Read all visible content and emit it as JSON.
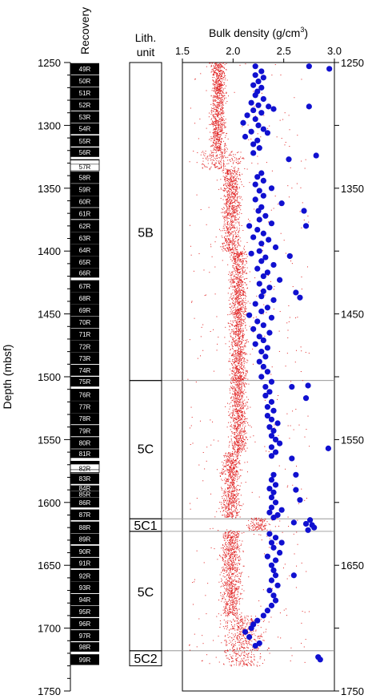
{
  "chart_data": {
    "type": "scatter",
    "ylabel": "Depth (mbsf)",
    "xlabel": "Bulk density (g/cm3)",
    "xlabel_parts": [
      "Bulk density (g/cm",
      "3",
      ")"
    ],
    "ylim": [
      1250,
      1750
    ],
    "xlim": [
      1.5,
      3.0
    ],
    "y_ticks": [
      1250,
      1300,
      1350,
      1400,
      1450,
      1500,
      1550,
      1600,
      1650,
      1700,
      1750
    ],
    "y_ticks_right": [
      1250,
      1350,
      1450,
      1550,
      1650,
      1750
    ],
    "x_ticks": [
      "1.5",
      "2.0",
      "2.5",
      "3.0"
    ],
    "x_tick_values": [
      1.5,
      2.0,
      2.5,
      3.0
    ],
    "recovery_title": "Recovery",
    "cores": [
      {
        "label": "49R",
        "top": 1250.5,
        "bottom": 1260.0,
        "recovered": 9.0,
        "white": false
      },
      {
        "label": "50R",
        "top": 1260.0,
        "bottom": 1269.6,
        "recovered": 9.2,
        "white": false
      },
      {
        "label": "51R",
        "top": 1269.6,
        "bottom": 1279.2,
        "recovered": 9.3,
        "white": false
      },
      {
        "label": "52R",
        "top": 1279.2,
        "bottom": 1288.8,
        "recovered": 9.0,
        "white": false
      },
      {
        "label": "53R",
        "top": 1288.8,
        "bottom": 1298.4,
        "recovered": 9.2,
        "white": false
      },
      {
        "label": "54R",
        "top": 1298.4,
        "bottom": 1308.0,
        "recovered": 8.6,
        "white": false
      },
      {
        "label": "55R",
        "top": 1308.0,
        "bottom": 1317.6,
        "recovered": 8.8,
        "white": false
      },
      {
        "label": "56R",
        "top": 1317.6,
        "bottom": 1327.2,
        "recovered": 7.5,
        "white": false
      },
      {
        "label": "57R",
        "top": 1327.2,
        "bottom": 1336.8,
        "recovered": 0.6,
        "white": true
      },
      {
        "label": "58R",
        "top": 1336.8,
        "bottom": 1346.4,
        "recovered": 9.3,
        "white": false
      },
      {
        "label": "59R",
        "top": 1346.4,
        "bottom": 1356.0,
        "recovered": 9.5,
        "white": false
      },
      {
        "label": "60R",
        "top": 1356.0,
        "bottom": 1365.6,
        "recovered": 9.2,
        "white": false
      },
      {
        "label": "61R",
        "top": 1365.6,
        "bottom": 1375.2,
        "recovered": 9.0,
        "white": false
      },
      {
        "label": "62R",
        "top": 1375.2,
        "bottom": 1384.8,
        "recovered": 9.5,
        "white": false
      },
      {
        "label": "63R",
        "top": 1384.8,
        "bottom": 1394.4,
        "recovered": 9.5,
        "white": false
      },
      {
        "label": "64R",
        "top": 1394.4,
        "bottom": 1404.0,
        "recovered": 9.5,
        "white": false
      },
      {
        "label": "65R",
        "top": 1404.0,
        "bottom": 1413.6,
        "recovered": 9.5,
        "white": false
      },
      {
        "label": "66R",
        "top": 1413.6,
        "bottom": 1423.2,
        "recovered": 7.5,
        "white": false
      },
      {
        "label": "67R",
        "top": 1423.2,
        "bottom": 1432.8,
        "recovered": 9.5,
        "white": false
      },
      {
        "label": "68R",
        "top": 1432.8,
        "bottom": 1442.4,
        "recovered": 9.5,
        "white": false
      },
      {
        "label": "69R",
        "top": 1442.4,
        "bottom": 1452.0,
        "recovered": 9.3,
        "white": false
      },
      {
        "label": "70R",
        "top": 1452.0,
        "bottom": 1461.6,
        "recovered": 9.2,
        "white": false
      },
      {
        "label": "71R",
        "top": 1461.6,
        "bottom": 1471.2,
        "recovered": 9.5,
        "white": false
      },
      {
        "label": "72R",
        "top": 1471.2,
        "bottom": 1480.8,
        "recovered": 9.5,
        "white": false
      },
      {
        "label": "73R",
        "top": 1480.8,
        "bottom": 1490.4,
        "recovered": 9.0,
        "white": false
      },
      {
        "label": "74R",
        "top": 1490.4,
        "bottom": 1500.0,
        "recovered": 8.8,
        "white": false
      },
      {
        "label": "75R",
        "top": 1500.0,
        "bottom": 1509.6,
        "recovered": 7.8,
        "white": false
      },
      {
        "label": "76R",
        "top": 1509.6,
        "bottom": 1519.2,
        "recovered": 9.5,
        "white": false
      },
      {
        "label": "77R",
        "top": 1519.2,
        "bottom": 1528.8,
        "recovered": 9.5,
        "white": false
      },
      {
        "label": "78R",
        "top": 1528.8,
        "bottom": 1538.4,
        "recovered": 9.0,
        "white": false
      },
      {
        "label": "79R",
        "top": 1538.4,
        "bottom": 1548.0,
        "recovered": 9.0,
        "white": false
      },
      {
        "label": "80R",
        "top": 1548.0,
        "bottom": 1557.6,
        "recovered": 9.2,
        "white": false
      },
      {
        "label": "81R",
        "top": 1557.6,
        "bottom": 1567.2,
        "recovered": 7.0,
        "white": false
      },
      {
        "label": "82R",
        "top": 1567.2,
        "bottom": 1576.8,
        "recovered": 2.5,
        "white": true
      },
      {
        "label": "83R",
        "top": 1576.8,
        "bottom": 1586.4,
        "recovered": 8.5,
        "white": false
      },
      {
        "label": "84R",
        "top": 1586.4,
        "bottom": 1591.0,
        "recovered": 4.4,
        "white": false
      },
      {
        "label": "85R",
        "top": 1591.0,
        "bottom": 1596.0,
        "recovered": 4.8,
        "white": false
      },
      {
        "label": "86R",
        "top": 1596.0,
        "bottom": 1605.6,
        "recovered": 8.0,
        "white": false
      },
      {
        "label": "87R",
        "top": 1605.6,
        "bottom": 1615.2,
        "recovered": 8.5,
        "white": false
      },
      {
        "label": "88R",
        "top": 1615.2,
        "bottom": 1624.8,
        "recovered": 9.3,
        "white": false
      },
      {
        "label": "89R",
        "top": 1624.8,
        "bottom": 1634.4,
        "recovered": 8.5,
        "white": false
      },
      {
        "label": "90R",
        "top": 1634.4,
        "bottom": 1644.0,
        "recovered": 9.0,
        "white": false
      },
      {
        "label": "91R",
        "top": 1644.0,
        "bottom": 1653.6,
        "recovered": 8.5,
        "white": false
      },
      {
        "label": "92R",
        "top": 1653.6,
        "bottom": 1663.2,
        "recovered": 9.5,
        "white": false
      },
      {
        "label": "93R",
        "top": 1663.2,
        "bottom": 1672.8,
        "recovered": 9.0,
        "white": false
      },
      {
        "label": "94R",
        "top": 1672.8,
        "bottom": 1682.4,
        "recovered": 9.2,
        "white": false
      },
      {
        "label": "95R",
        "top": 1682.4,
        "bottom": 1692.0,
        "recovered": 8.8,
        "white": false
      },
      {
        "label": "96R",
        "top": 1692.0,
        "bottom": 1701.6,
        "recovered": 9.0,
        "white": false
      },
      {
        "label": "97R",
        "top": 1701.6,
        "bottom": 1711.2,
        "recovered": 8.8,
        "white": false
      },
      {
        "label": "98R",
        "top": 1711.2,
        "bottom": 1720.8,
        "recovered": 7.5,
        "white": false
      },
      {
        "label": "99R",
        "top": 1720.8,
        "bottom": 1730.4,
        "recovered": 8.5,
        "white": false
      }
    ],
    "lith_title_lines": [
      "Lith.",
      "unit"
    ],
    "lith_units": [
      {
        "label": "5B",
        "top": 1250,
        "bottom": 1503,
        "label_depth": 1385
      },
      {
        "label": "5C",
        "top": 1503,
        "bottom": 1613,
        "label_depth": 1557
      },
      {
        "label": "5C1",
        "top": 1613,
        "bottom": 1623,
        "label_depth": 1618
      },
      {
        "label": "5C",
        "top": 1623,
        "bottom": 1718,
        "label_depth": 1671
      },
      {
        "label": "5C2",
        "top": 1718,
        "bottom": 1730,
        "label_depth": 1724
      }
    ],
    "boundary_lines": [
      1503,
      1613,
      1623,
      1718
    ],
    "gap_depths": [
      1329,
      1572
    ],
    "logging_density_bands": [
      {
        "from": 1250,
        "to": 1320,
        "center": 1.85,
        "spread": 0.06
      },
      {
        "from": 1320,
        "to": 1335,
        "center": 1.9,
        "spread": 0.2
      },
      {
        "from": 1335,
        "to": 1400,
        "center": 1.98,
        "spread": 0.08
      },
      {
        "from": 1400,
        "to": 1500,
        "center": 2.05,
        "spread": 0.07
      },
      {
        "from": 1500,
        "to": 1560,
        "center": 2.05,
        "spread": 0.07
      },
      {
        "from": 1560,
        "to": 1612,
        "center": 1.98,
        "spread": 0.08
      },
      {
        "from": 1612,
        "to": 1622,
        "center": 2.25,
        "spread": 0.1
      },
      {
        "from": 1622,
        "to": 1690,
        "center": 1.98,
        "spread": 0.08
      },
      {
        "from": 1690,
        "to": 1730,
        "center": 2.1,
        "spread": 0.18
      }
    ],
    "series": [
      {
        "name": "",
        "color": "#1010d0",
        "points": [
          [
            2.22,
            1253
          ],
          [
            2.75,
            1253
          ],
          [
            2.95,
            1255
          ],
          [
            2.28,
            1257
          ],
          [
            2.22,
            1260
          ],
          [
            2.3,
            1262
          ],
          [
            2.25,
            1265
          ],
          [
            2.2,
            1268
          ],
          [
            2.28,
            1270
          ],
          [
            2.24,
            1273
          ],
          [
            2.22,
            1276
          ],
          [
            2.3,
            1279
          ],
          [
            2.18,
            1282
          ],
          [
            2.25,
            1284
          ],
          [
            2.35,
            1285
          ],
          [
            2.75,
            1285
          ],
          [
            2.2,
            1288
          ],
          [
            2.28,
            1290
          ],
          [
            2.4,
            1287
          ],
          [
            2.14,
            1292
          ],
          [
            2.22,
            1295
          ],
          [
            2.1,
            1298
          ],
          [
            2.25,
            1300
          ],
          [
            2.3,
            1303
          ],
          [
            2.18,
            1305
          ],
          [
            2.34,
            1306
          ],
          [
            2.12,
            1309
          ],
          [
            2.24,
            1312
          ],
          [
            2.2,
            1315
          ],
          [
            2.26,
            1318
          ],
          [
            2.82,
            1324
          ],
          [
            2.2,
            1322
          ],
          [
            2.55,
            1327
          ],
          [
            2.28,
            1338
          ],
          [
            2.24,
            1341
          ],
          [
            2.3,
            1344
          ],
          [
            2.22,
            1347
          ],
          [
            2.38,
            1350
          ],
          [
            2.26,
            1352
          ],
          [
            2.3,
            1356
          ],
          [
            2.22,
            1359
          ],
          [
            2.48,
            1362
          ],
          [
            2.28,
            1365
          ],
          [
            2.25,
            1368
          ],
          [
            2.7,
            1368
          ],
          [
            2.32,
            1372
          ],
          [
            2.26,
            1375
          ],
          [
            2.38,
            1378
          ],
          [
            2.16,
            1380
          ],
          [
            2.72,
            1380
          ],
          [
            2.24,
            1383
          ],
          [
            2.3,
            1386
          ],
          [
            2.2,
            1389
          ],
          [
            2.35,
            1391
          ],
          [
            2.28,
            1394
          ],
          [
            2.42,
            1397
          ],
          [
            2.26,
            1400
          ],
          [
            2.18,
            1402
          ],
          [
            2.32,
            1405
          ],
          [
            2.56,
            1404
          ],
          [
            2.28,
            1408
          ],
          [
            2.4,
            1411
          ],
          [
            2.24,
            1414
          ],
          [
            2.34,
            1417
          ],
          [
            2.3,
            1420
          ],
          [
            2.46,
            1423
          ],
          [
            2.26,
            1426
          ],
          [
            2.36,
            1429
          ],
          [
            2.3,
            1432
          ],
          [
            2.62,
            1433
          ],
          [
            2.28,
            1436
          ],
          [
            2.4,
            1439
          ],
          [
            2.22,
            1442
          ],
          [
            2.66,
            1437
          ],
          [
            2.34,
            1445
          ],
          [
            2.28,
            1448
          ],
          [
            2.16,
            1451
          ],
          [
            2.38,
            1453
          ],
          [
            2.24,
            1456
          ],
          [
            2.3,
            1459
          ],
          [
            2.2,
            1462
          ],
          [
            2.36,
            1465
          ],
          [
            2.26,
            1468
          ],
          [
            2.3,
            1471
          ],
          [
            2.22,
            1474
          ],
          [
            2.34,
            1477
          ],
          [
            2.28,
            1480
          ],
          [
            2.32,
            1484
          ],
          [
            2.26,
            1488
          ],
          [
            2.3,
            1492
          ],
          [
            2.34,
            1496
          ],
          [
            2.28,
            1500
          ],
          [
            2.38,
            1504
          ],
          [
            2.32,
            1508
          ],
          [
            2.58,
            1508
          ],
          [
            2.74,
            1507
          ],
          [
            2.36,
            1512
          ],
          [
            2.32,
            1515
          ],
          [
            2.72,
            1517
          ],
          [
            2.38,
            1520
          ],
          [
            2.34,
            1524
          ],
          [
            2.4,
            1527
          ],
          [
            2.34,
            1531
          ],
          [
            2.38,
            1534
          ],
          [
            2.44,
            1537
          ],
          [
            2.36,
            1540
          ],
          [
            2.4,
            1543
          ],
          [
            2.38,
            1547
          ],
          [
            2.42,
            1550
          ],
          [
            2.46,
            1553
          ],
          [
            2.38,
            1556
          ],
          [
            2.94,
            1557
          ],
          [
            2.42,
            1560
          ],
          [
            2.38,
            1563
          ],
          [
            2.58,
            1565
          ],
          [
            2.4,
            1578
          ],
          [
            2.62,
            1578
          ],
          [
            2.38,
            1582
          ],
          [
            2.42,
            1586
          ],
          [
            2.36,
            1589
          ],
          [
            2.62,
            1590
          ],
          [
            2.4,
            1592
          ],
          [
            2.38,
            1596
          ],
          [
            2.66,
            1598
          ],
          [
            2.42,
            1600
          ],
          [
            2.38,
            1604
          ],
          [
            2.36,
            1608
          ],
          [
            2.44,
            1610
          ],
          [
            2.48,
            1606
          ],
          [
            2.4,
            1612
          ],
          [
            2.6,
            1616
          ],
          [
            2.76,
            1614
          ],
          [
            2.72,
            1617
          ],
          [
            2.78,
            1618
          ],
          [
            2.8,
            1620
          ],
          [
            2.74,
            1622
          ],
          [
            2.36,
            1625
          ],
          [
            2.42,
            1628
          ],
          [
            2.38,
            1632
          ],
          [
            2.48,
            1632
          ],
          [
            2.4,
            1636
          ],
          [
            2.46,
            1640
          ],
          [
            2.34,
            1643
          ],
          [
            2.42,
            1646
          ],
          [
            2.38,
            1650
          ],
          [
            2.4,
            1654
          ],
          [
            2.42,
            1658
          ],
          [
            2.6,
            1658
          ],
          [
            2.38,
            1662
          ],
          [
            2.44,
            1666
          ],
          [
            2.36,
            1670
          ],
          [
            2.4,
            1674
          ],
          [
            2.42,
            1678
          ],
          [
            2.38,
            1682
          ],
          [
            2.34,
            1686
          ],
          [
            2.3,
            1690
          ],
          [
            2.24,
            1694
          ],
          [
            2.2,
            1697
          ],
          [
            2.18,
            1700
          ],
          [
            2.12,
            1703
          ],
          [
            2.16,
            1707
          ],
          [
            2.26,
            1712
          ],
          [
            2.22,
            1714
          ],
          [
            2.84,
            1723
          ],
          [
            2.86,
            1725
          ]
        ]
      }
    ]
  }
}
